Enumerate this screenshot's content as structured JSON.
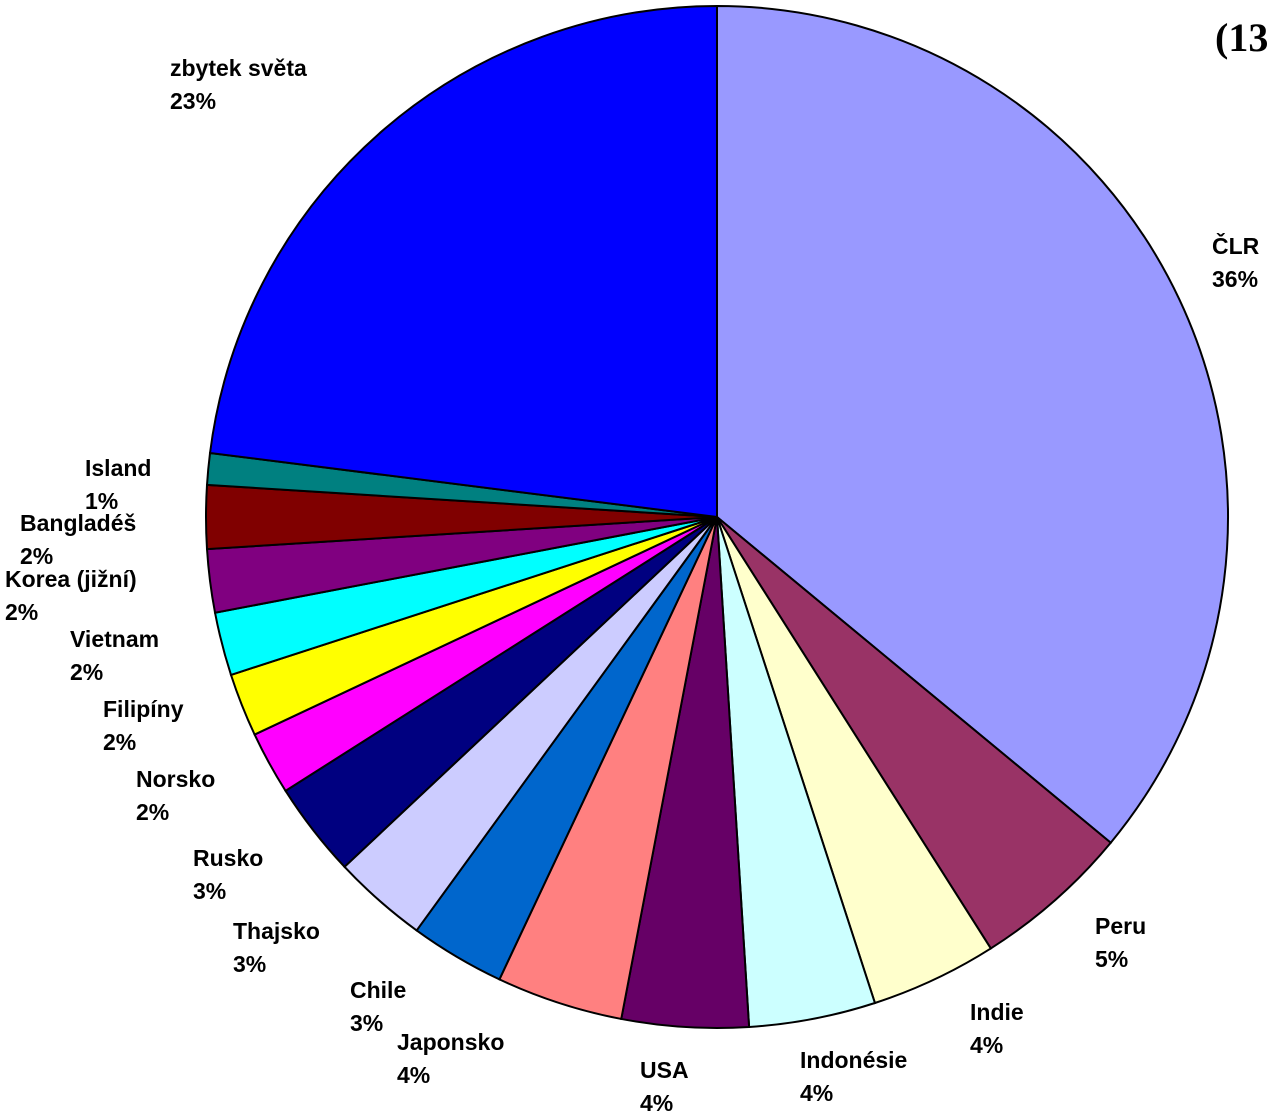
{
  "chart_data": {
    "type": "pie",
    "title": "(13",
    "categories": [
      "ČLR",
      "Peru",
      "Indie",
      "Indonésie",
      "USA",
      "Japonsko",
      "Chile",
      "Thajsko",
      "Rusko",
      "Norsko",
      "Filipíny",
      "Vietnam",
      "Korea (jižní)",
      "Bangladéš",
      "Island",
      "zbytek světa"
    ],
    "values": [
      36,
      5,
      4,
      4,
      4,
      4,
      3,
      3,
      3,
      2,
      2,
      2,
      2,
      2,
      1,
      23
    ],
    "value_labels": [
      "36%",
      "5%",
      "4%",
      "4%",
      "4%",
      "4%",
      "3%",
      "3%",
      "3%",
      "2%",
      "2%",
      "2%",
      "2%",
      "2%",
      "1%",
      "23%"
    ],
    "colors": [
      "#9999ff",
      "#993366",
      "#ffffcc",
      "#ccffff",
      "#660066",
      "#ff8080",
      "#0066cc",
      "#ccccff",
      "#000080",
      "#ff00ff",
      "#ffff00",
      "#00ffff",
      "#800080",
      "#800000",
      "#008080",
      "#0000ff"
    ]
  }
}
